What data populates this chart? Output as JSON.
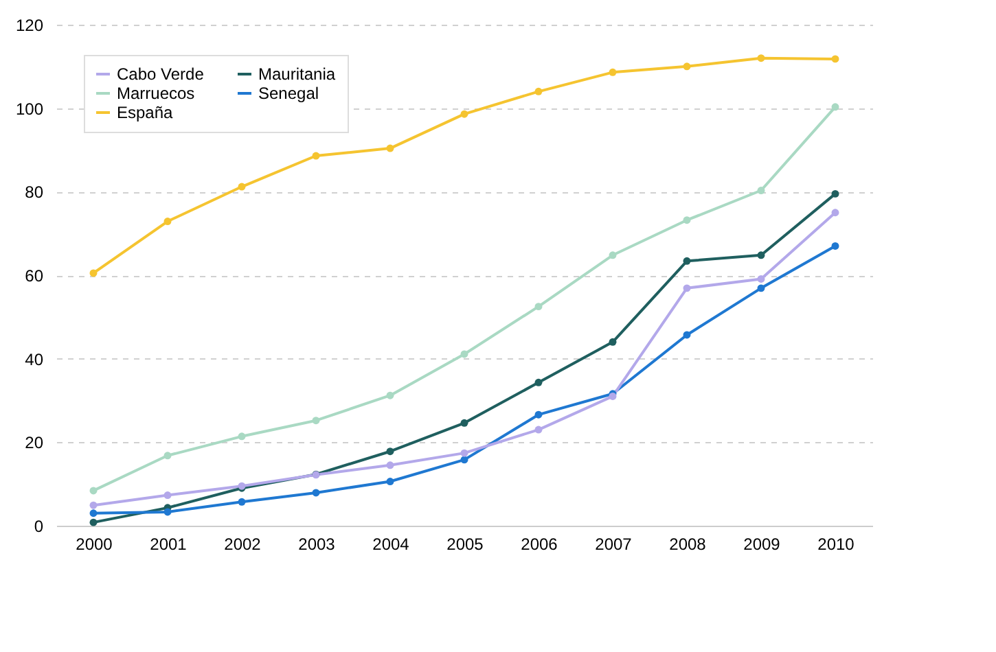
{
  "chart_data": {
    "type": "line",
    "categories": [
      "2000",
      "2001",
      "2002",
      "2003",
      "2004",
      "2005",
      "2006",
      "2007",
      "2008",
      "2009",
      "2010"
    ],
    "series": [
      {
        "name": "Cabo Verde",
        "color": "#b3a8ea",
        "values": [
          4.9,
          7.3,
          9.5,
          12.2,
          14.5,
          17.4,
          23,
          31,
          56.9,
          59.1,
          75
        ]
      },
      {
        "name": "Marruecos",
        "color": "#a9d9c3",
        "values": [
          8.4,
          16.8,
          21.4,
          25.2,
          31.2,
          41.1,
          52.5,
          64.8,
          73.2,
          80.3,
          100.3
        ]
      },
      {
        "name": "España",
        "color": "#f5c430",
        "values": [
          60.5,
          72.9,
          81.2,
          88.6,
          90.4,
          98.6,
          104,
          108.6,
          110,
          112,
          111.8
        ]
      },
      {
        "name": "Mauritania",
        "color": "#1f5f5f",
        "values": [
          0.8,
          4.3,
          9,
          12.3,
          17.8,
          24.6,
          34.3,
          44,
          63.4,
          64.8,
          79.5
        ]
      },
      {
        "name": "Senegal",
        "color": "#1f78d1",
        "values": [
          3,
          3.3,
          5.7,
          7.9,
          10.6,
          15.8,
          26.6,
          31.6,
          45.7,
          56.9,
          67
        ]
      }
    ],
    "ylim": [
      0,
      120
    ],
    "yticks": [
      0,
      20,
      40,
      60,
      80,
      100,
      120
    ],
    "grid": "y",
    "legend": "top left",
    "marker": "circle",
    "line_style": "solid"
  }
}
